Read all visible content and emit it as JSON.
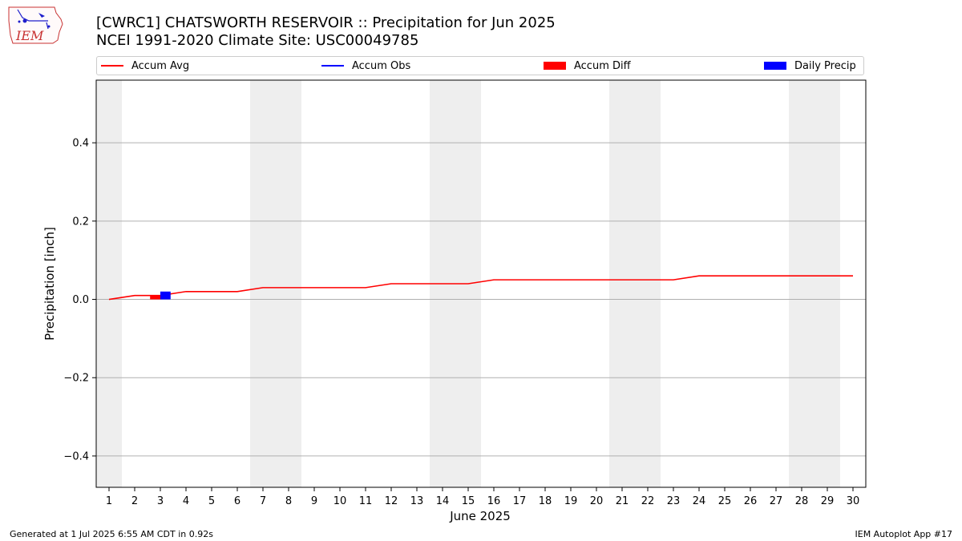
{
  "header": {
    "title_line1": "[CWRC1] CHATSWORTH RESERVOIR :: Precipitation for Jun 2025",
    "title_line2": "NCEI 1991-2020 Climate Site: USC00049785"
  },
  "logo": {
    "text": "IEM"
  },
  "legend": {
    "items": [
      {
        "label": "Accum Avg",
        "kind": "line",
        "color": "#ff0000"
      },
      {
        "label": "Accum Obs",
        "kind": "line",
        "color": "#0000ff"
      },
      {
        "label": "Accum Diff",
        "kind": "box",
        "color": "#ff0000"
      },
      {
        "label": "Daily Precip",
        "kind": "box",
        "color": "#0000ff"
      }
    ]
  },
  "footer": {
    "left": "Generated at 1 Jul 2025 6:55 AM CDT in 0.92s",
    "right": "IEM Autoplot App #17"
  },
  "chart_data": {
    "type": "line",
    "xlabel": "June 2025",
    "ylabel": "Precipitation [inch]",
    "xlim": [
      0.5,
      30.5
    ],
    "ylim": [
      -0.48,
      0.56
    ],
    "x": [
      1,
      2,
      3,
      4,
      5,
      6,
      7,
      8,
      9,
      10,
      11,
      12,
      13,
      14,
      15,
      16,
      17,
      18,
      19,
      20,
      21,
      22,
      23,
      24,
      25,
      26,
      27,
      28,
      29,
      30
    ],
    "y_ticks": [
      -0.4,
      -0.2,
      0.0,
      0.2,
      0.4
    ],
    "y_tick_labels": [
      "−0.4",
      "−0.2",
      "0.0",
      "0.2",
      "0.4"
    ],
    "grid": true,
    "weekend_shading": [
      [
        0.5,
        1.5
      ],
      [
        6.5,
        8.5
      ],
      [
        13.5,
        15.5
      ],
      [
        20.5,
        22.5
      ],
      [
        27.5,
        29.5
      ]
    ],
    "series": [
      {
        "name": "Accum Avg",
        "type": "line",
        "color": "#ff0000",
        "values": [
          0.0,
          0.01,
          0.01,
          0.02,
          0.02,
          0.02,
          0.03,
          0.03,
          0.03,
          0.03,
          0.03,
          0.04,
          0.04,
          0.04,
          0.04,
          0.05,
          0.05,
          0.05,
          0.05,
          0.05,
          0.05,
          0.05,
          0.05,
          0.06,
          0.06,
          0.06,
          0.06,
          0.06,
          0.06,
          0.06
        ]
      },
      {
        "name": "Accum Diff",
        "type": "bar",
        "color": "#ff0000",
        "points": [
          {
            "x": 3,
            "y": 0.01
          }
        ]
      },
      {
        "name": "Daily Precip",
        "type": "bar",
        "color": "#0000ff",
        "points": [
          {
            "x": 3,
            "y": 0.02
          }
        ]
      }
    ]
  }
}
